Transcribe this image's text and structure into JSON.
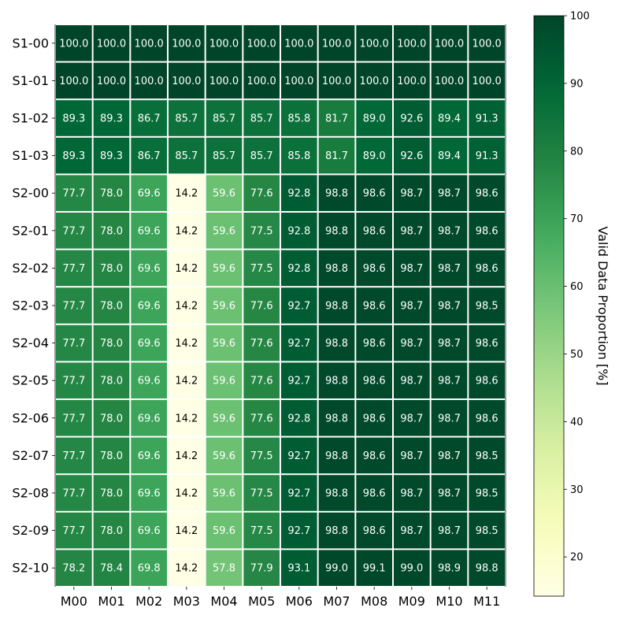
{
  "chart_data": {
    "type": "heatmap",
    "x_categories": [
      "M00",
      "M01",
      "M02",
      "M03",
      "M04",
      "M05",
      "M06",
      "M07",
      "M08",
      "M09",
      "M10",
      "M11"
    ],
    "y_categories": [
      "S1-00",
      "S1-01",
      "S1-02",
      "S1-03",
      "S2-00",
      "S2-01",
      "S2-02",
      "S2-03",
      "S2-04",
      "S2-05",
      "S2-06",
      "S2-07",
      "S2-08",
      "S2-09",
      "S2-10"
    ],
    "values": [
      [
        100.0,
        100.0,
        100.0,
        100.0,
        100.0,
        100.0,
        100.0,
        100.0,
        100.0,
        100.0,
        100.0,
        100.0
      ],
      [
        100.0,
        100.0,
        100.0,
        100.0,
        100.0,
        100.0,
        100.0,
        100.0,
        100.0,
        100.0,
        100.0,
        100.0
      ],
      [
        89.3,
        89.3,
        86.7,
        85.7,
        85.7,
        85.7,
        85.8,
        81.7,
        89.0,
        92.6,
        89.4,
        91.3
      ],
      [
        89.3,
        89.3,
        86.7,
        85.7,
        85.7,
        85.7,
        85.8,
        81.7,
        89.0,
        92.6,
        89.4,
        91.3
      ],
      [
        77.7,
        78.0,
        69.6,
        14.2,
        59.6,
        77.6,
        92.8,
        98.8,
        98.6,
        98.7,
        98.7,
        98.6
      ],
      [
        77.7,
        78.0,
        69.6,
        14.2,
        59.6,
        77.5,
        92.8,
        98.8,
        98.6,
        98.7,
        98.7,
        98.6
      ],
      [
        77.7,
        78.0,
        69.6,
        14.2,
        59.6,
        77.5,
        92.8,
        98.8,
        98.6,
        98.7,
        98.7,
        98.6
      ],
      [
        77.7,
        78.0,
        69.6,
        14.2,
        59.6,
        77.6,
        92.7,
        98.8,
        98.6,
        98.7,
        98.7,
        98.5
      ],
      [
        77.7,
        78.0,
        69.6,
        14.2,
        59.6,
        77.6,
        92.7,
        98.8,
        98.6,
        98.7,
        98.7,
        98.6
      ],
      [
        77.7,
        78.0,
        69.6,
        14.2,
        59.6,
        77.6,
        92.7,
        98.8,
        98.6,
        98.7,
        98.7,
        98.6
      ],
      [
        77.7,
        78.0,
        69.6,
        14.2,
        59.6,
        77.6,
        92.8,
        98.8,
        98.6,
        98.7,
        98.7,
        98.6
      ],
      [
        77.7,
        78.0,
        69.6,
        14.2,
        59.6,
        77.5,
        92.7,
        98.8,
        98.6,
        98.7,
        98.7,
        98.5
      ],
      [
        77.7,
        78.0,
        69.6,
        14.2,
        59.6,
        77.5,
        92.7,
        98.8,
        98.6,
        98.7,
        98.7,
        98.5
      ],
      [
        77.7,
        78.0,
        69.6,
        14.2,
        59.6,
        77.5,
        92.7,
        98.8,
        98.6,
        98.7,
        98.7,
        98.5
      ],
      [
        78.2,
        78.4,
        69.8,
        14.2,
        57.8,
        77.9,
        93.1,
        99.0,
        99.1,
        99.0,
        98.9,
        98.8
      ]
    ],
    "colorbar": {
      "label": "Valid Data Proportion [%]",
      "min": 14.2,
      "max": 100,
      "ticks": [
        20,
        30,
        40,
        50,
        60,
        70,
        80,
        90,
        100
      ],
      "colormap": "YlGn"
    },
    "cell_text_color_light": "#ffffff",
    "cell_text_color_dark": "#000000",
    "grid_line_color": "#ffffff"
  }
}
